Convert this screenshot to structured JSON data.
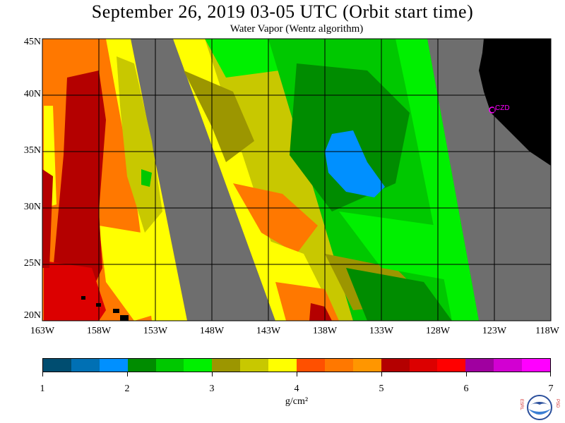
{
  "header": {
    "title": "September 26, 2019  03-05 UTC  (Orbit start time)",
    "subtitle": "Water Vapor (Wentz algorithm)"
  },
  "map": {
    "lat_labels": [
      "45N",
      "40N",
      "35N",
      "30N",
      "25N",
      "20N"
    ],
    "lon_labels": [
      "163W",
      "158W",
      "153W",
      "148W",
      "143W",
      "138W",
      "133W",
      "128W",
      "123W",
      "118W"
    ],
    "station_label": "CZD",
    "no_data_color": "#6e6e6e",
    "land_color": "#000000"
  },
  "colorbar": {
    "colors": [
      "#004d70",
      "#0070b4",
      "#0090ff",
      "#008c00",
      "#00c800",
      "#00f000",
      "#9c9600",
      "#c8c800",
      "#ffff00",
      "#ff5000",
      "#ff7800",
      "#ff9600",
      "#b40000",
      "#dc0000",
      "#ff0000",
      "#a000a0",
      "#d200d2",
      "#ff00ff"
    ],
    "tick_labels": [
      "1",
      "2",
      "3",
      "4",
      "5",
      "6",
      "7"
    ],
    "units": "g/cm²"
  },
  "logo": {
    "left_letters": "ESRL",
    "right_letters": "PSD",
    "center_text": "NOAA"
  }
}
